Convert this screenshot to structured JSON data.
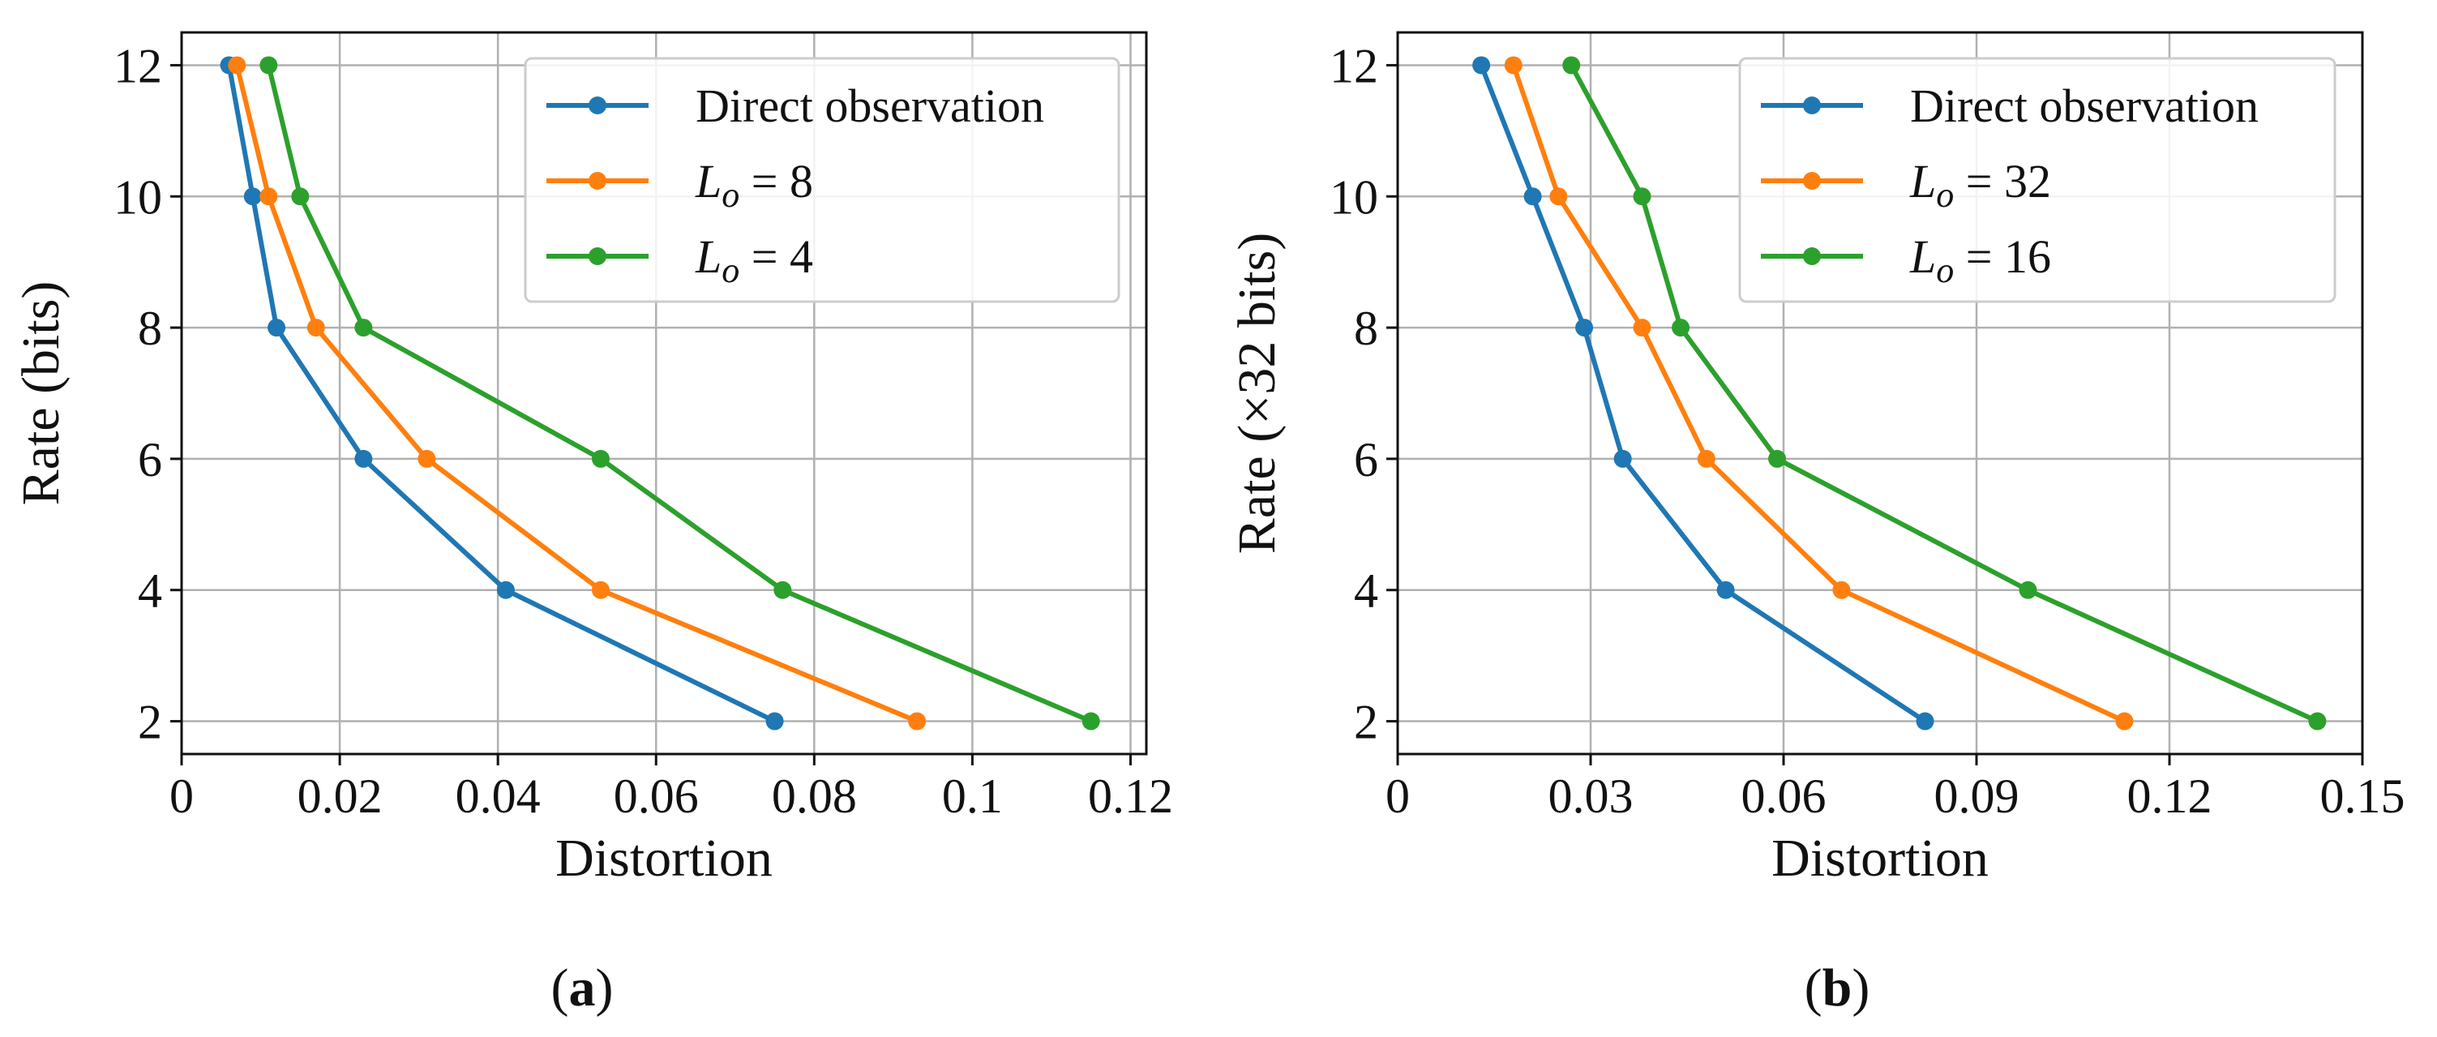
{
  "chart_data": [
    {
      "type": "line",
      "panel": "a",
      "caption": "(a)",
      "xlabel": "Distortion",
      "ylabel": "Rate (bits)",
      "xlim": [
        0,
        0.122
      ],
      "ylim": [
        1.5,
        12.5
      ],
      "xticks": [
        0,
        0.02,
        0.04,
        0.06,
        0.08,
        0.1,
        0.12
      ],
      "xtick_labels": [
        "0",
        "0.02",
        "0.04",
        "0.06",
        "0.08",
        "0.1",
        "0.12"
      ],
      "yticks": [
        2,
        4,
        6,
        8,
        10,
        12
      ],
      "ytick_labels": [
        "2",
        "4",
        "6",
        "8",
        "10",
        "12"
      ],
      "grid": true,
      "legend_position": "top-right",
      "series": [
        {
          "name": "Direct observation",
          "label_prefix": "Direct observation",
          "label_sub": "",
          "label_value": "",
          "color": "#1f77b4",
          "x": [
            0.075,
            0.041,
            0.023,
            0.012,
            0.009,
            0.006
          ],
          "y": [
            2,
            4,
            6,
            8,
            10,
            12
          ]
        },
        {
          "name": "L_o = 8",
          "label_prefix": "L",
          "label_sub": "o",
          "label_value": "8",
          "color": "#ff7f0e",
          "x": [
            0.093,
            0.053,
            0.031,
            0.017,
            0.011,
            0.007
          ],
          "y": [
            2,
            4,
            6,
            8,
            10,
            12
          ]
        },
        {
          "name": "L_o = 4",
          "label_prefix": "L",
          "label_sub": "o",
          "label_value": "4",
          "color": "#2ca02c",
          "x": [
            0.115,
            0.076,
            0.053,
            0.023,
            0.015,
            0.011
          ],
          "y": [
            2,
            4,
            6,
            8,
            10,
            12
          ]
        }
      ]
    },
    {
      "type": "line",
      "panel": "b",
      "caption": "(b)",
      "xlabel": "Distortion",
      "ylabel": "Rate (×32 bits)",
      "xlim": [
        0,
        0.15
      ],
      "ylim": [
        1.5,
        12.5
      ],
      "xticks": [
        0,
        0.03,
        0.06,
        0.09,
        0.12,
        0.15
      ],
      "xtick_labels": [
        "0",
        "0.03",
        "0.06",
        "0.09",
        "0.12",
        "0.15"
      ],
      "yticks": [
        2,
        4,
        6,
        8,
        10,
        12
      ],
      "ytick_labels": [
        "2",
        "4",
        "6",
        "8",
        "10",
        "12"
      ],
      "grid": true,
      "legend_position": "top-right",
      "series": [
        {
          "name": "Direct observation",
          "label_prefix": "Direct observation",
          "label_sub": "",
          "label_value": "",
          "color": "#1f77b4",
          "x": [
            0.082,
            0.051,
            0.035,
            0.029,
            0.021,
            0.013
          ],
          "y": [
            2,
            4,
            6,
            8,
            10,
            12
          ]
        },
        {
          "name": "L_o = 32",
          "label_prefix": "L",
          "label_sub": "o",
          "label_value": "32",
          "color": "#ff7f0e",
          "x": [
            0.113,
            0.069,
            0.048,
            0.038,
            0.025,
            0.018
          ],
          "y": [
            2,
            4,
            6,
            8,
            10,
            12
          ]
        },
        {
          "name": "L_o = 16",
          "label_prefix": "L",
          "label_sub": "o",
          "label_value": "16",
          "color": "#2ca02c",
          "x": [
            0.143,
            0.098,
            0.059,
            0.044,
            0.038,
            0.027
          ],
          "y": [
            2,
            4,
            6,
            8,
            10,
            12
          ]
        }
      ]
    }
  ]
}
